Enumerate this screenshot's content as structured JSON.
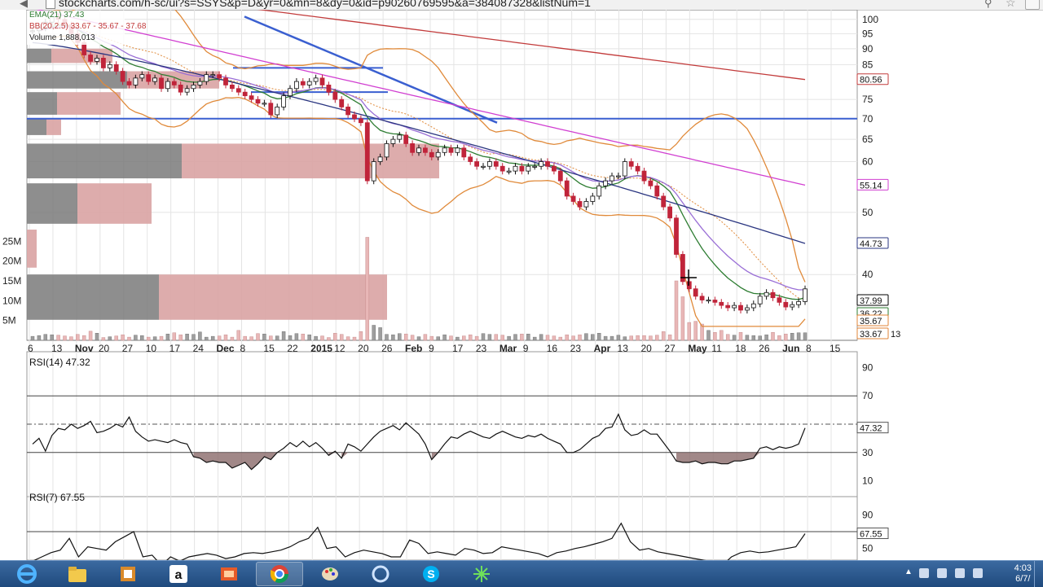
{
  "browser": {
    "url": "stockcharts.com/h-sc/ui?s=SSYS&p=D&yr=0&mn=8&dy=0&id=p90260769595&a=384087328&listNum=1"
  },
  "chart_data": {
    "type": "candlestick",
    "legend": {
      "ema": "EMA(21) 37.43",
      "bb": "BB(20,2.5) 33.67 - 35.67 - 37.68",
      "volume": "Volume 1,888,013"
    },
    "price_axis": {
      "scale": "log",
      "ticks": [
        100,
        95,
        90,
        85,
        75,
        70,
        65,
        60,
        50,
        40
      ],
      "ylim": [
        33,
        102
      ]
    },
    "volume_axis": {
      "ticks": [
        "25M",
        "20M",
        "15M",
        "10M",
        "5M"
      ],
      "tick_values": [
        25,
        20,
        15,
        10,
        5
      ],
      "ylim": [
        0,
        30
      ]
    },
    "x_ticks": [
      "6",
      "13",
      "Nov",
      "20",
      "27",
      "10",
      "17",
      "24",
      "Dec",
      "8",
      "15",
      "22",
      "2015",
      "12",
      "20",
      "26",
      "Feb",
      "9",
      "17",
      "23",
      "Mar",
      "9",
      "16",
      "23",
      "Apr",
      "13",
      "20",
      "27",
      "May",
      "11",
      "18",
      "26",
      "Jun",
      "8",
      "15"
    ],
    "bold_x_ticks": [
      "Nov",
      "Dec",
      "2015",
      "Feb",
      "Mar",
      "Apr",
      "May",
      "Jun"
    ],
    "price_labels": [
      {
        "text": "80.56",
        "value": 80.56,
        "color": "#c23b3b"
      },
      {
        "text": "55.14",
        "value": 55.14,
        "color": "#d13fd1"
      },
      {
        "text": "44.73",
        "value": 44.73,
        "color": "#2a3580"
      },
      {
        "text": "37.99",
        "value": 37.99,
        "color": "#000000"
      },
      {
        "text": "36.22",
        "value": 36.22,
        "color": "#2e7d32"
      },
      {
        "text": "35.67",
        "value": 35.67,
        "color": "#e0853a"
      },
      {
        "text": "33.67",
        "value": 33.67,
        "color": "#e0853a"
      }
    ],
    "price_label_partial": "13",
    "horizontal_line": 70,
    "closes": [
      96,
      97,
      99,
      101,
      100,
      98,
      95,
      92,
      88,
      86,
      87,
      84,
      85,
      83,
      80,
      79,
      81,
      82,
      80,
      81,
      78,
      80,
      79,
      77,
      78,
      79,
      80,
      82,
      82,
      81,
      79,
      78,
      77,
      76,
      75,
      74,
      74,
      71,
      73,
      76,
      78,
      80,
      79,
      80,
      81,
      79,
      77,
      75,
      73,
      71,
      70,
      69,
      56,
      60,
      61,
      64,
      65,
      66,
      64,
      62,
      63,
      62,
      61,
      62,
      63,
      62,
      63,
      61,
      60,
      59,
      59,
      60,
      59,
      58,
      58,
      59,
      58,
      59,
      59,
      60,
      59,
      58,
      56,
      53,
      52,
      51,
      52,
      53,
      55,
      56,
      57,
      57,
      60,
      59,
      58,
      56,
      55,
      53,
      51,
      49,
      43,
      39,
      38,
      37,
      36.5,
      36.5,
      36.2,
      35.8,
      35.5,
      35.8,
      35.2,
      35.5,
      36,
      37,
      37.5,
      36.8,
      36.2,
      35.6,
      35.9,
      36.3,
      37.99
    ],
    "volume_values": [
      1.0,
      1.2,
      1.5,
      1.4,
      1.3,
      1.1,
      0.9,
      1.5,
      1.2,
      2.3,
      1.8,
      0.7,
      0.9,
      1.1,
      1.4,
      0.8,
      1.3,
      1.2,
      0.8,
      0.9,
      1.0,
      1.6,
      1.9,
      1.4,
      1.6,
      1.5,
      2.1,
      0.8,
      1.0,
      1.1,
      1.4,
      0.8,
      2.5,
      1.0,
      0.9,
      1.7,
      1.6,
      1.1,
      1.1,
      2.2,
      1.2,
      1.7,
      1.6,
      1.4,
      1.0,
      1.1,
      0.7,
      1.8,
      1.5,
      0.9,
      0.8,
      2.2,
      26,
      3.8,
      3.2,
      1.5,
      1.4,
      1.7,
      1.6,
      1.3,
      0.9,
      1.5,
      1.0,
      0.9,
      1.4,
      1.1,
      0.8,
      1.1,
      1.4,
      1.0,
      1.7,
      1.5,
      1.5,
      1.3,
      1.0,
      1.5,
      1.6,
      1.6,
      0.8,
      1.5,
      1.3,
      1.1,
      0.8,
      1.4,
      1.1,
      1.4,
      1.7,
      1.5,
      1.8,
      1.0,
      1.0,
      1.3,
      0.9,
      1.1,
      1.2,
      1.2,
      1.1,
      1.3,
      2.2,
      1.4,
      15,
      11,
      4.5,
      4.8,
      4.1,
      2.5,
      2.0,
      2.5,
      1.5,
      1.3,
      2.0,
      1.3,
      1.2,
      1.1,
      1.4,
      2.0,
      1.2,
      1.6,
      1.8,
      1.9,
      1.9
    ],
    "volume_by_price": [
      {
        "price_top": 90,
        "price_bottom": 85.5,
        "down": 30,
        "up": 75
      },
      {
        "price_top": 83,
        "price_bottom": 78,
        "down": 123,
        "up": 113
      },
      {
        "price_top": 77,
        "price_bottom": 71,
        "down": 37,
        "up": 78
      },
      {
        "price_top": 70,
        "price_bottom": 66,
        "down": 24,
        "up": 18
      },
      {
        "price_top": 64,
        "price_bottom": 56.5,
        "down": 190,
        "up": 316
      },
      {
        "price_top": 55.5,
        "price_bottom": 48,
        "down": 62,
        "up": 91
      },
      {
        "price_top": 47,
        "price_bottom": 41,
        "down": 0,
        "up": 12
      },
      {
        "price_top": 40,
        "price_bottom": 34,
        "down": 162,
        "up": 280
      }
    ],
    "rsi14": {
      "label": "RSI(14) 47.32",
      "ticks": [
        90,
        70,
        30,
        10
      ],
      "ylim": [
        0,
        100
      ],
      "current_label": "47.32",
      "values": [
        36,
        40,
        31,
        42,
        47,
        46,
        50,
        47,
        49,
        52,
        44,
        45,
        47,
        50,
        48,
        55,
        45,
        41,
        38,
        39,
        38,
        37,
        39,
        37,
        36,
        27,
        26,
        23,
        24,
        23,
        23,
        19,
        21,
        23,
        18,
        22,
        27,
        25,
        30,
        33,
        37,
        34,
        38,
        34,
        37,
        33,
        28,
        31,
        26,
        36,
        34,
        31,
        36,
        41,
        45,
        47,
        49,
        46,
        51,
        47,
        43,
        36,
        25,
        30,
        36,
        41,
        40,
        43,
        45,
        43,
        41,
        40,
        43,
        45,
        43,
        41,
        40,
        42,
        41,
        43,
        40,
        38,
        36,
        30,
        30,
        32,
        36,
        40,
        42,
        47,
        48,
        57,
        46,
        42,
        43,
        46,
        43,
        43,
        37,
        31,
        24,
        23,
        23,
        24,
        22,
        23,
        23,
        22,
        22,
        24,
        24,
        25,
        26,
        33,
        34,
        32,
        34,
        33,
        34,
        36,
        47.32
      ]
    },
    "rsi7": {
      "label": "RSI(7) 67.55",
      "ticks": [
        90,
        70,
        50
      ],
      "ylim": [
        40,
        100
      ],
      "current_label": "67.55",
      "visible_values": [
        35,
        40,
        45,
        48,
        62,
        40,
        52,
        50,
        48,
        58,
        64,
        70,
        40,
        42,
        30,
        40,
        35,
        40,
        42,
        44,
        42,
        38,
        40,
        44,
        45,
        44,
        46,
        48,
        52,
        58,
        62,
        75,
        50,
        52,
        40,
        45,
        48,
        46,
        44,
        40,
        40,
        60,
        56,
        44,
        46,
        44,
        42,
        50,
        48,
        44,
        45,
        52,
        50,
        48,
        46,
        44,
        40,
        45,
        47,
        50,
        52,
        55,
        58,
        62,
        80,
        58,
        48,
        50,
        46,
        44,
        42,
        40,
        38,
        36,
        34,
        30,
        40,
        45,
        47,
        45,
        46,
        48,
        50,
        52,
        67.55
      ]
    }
  },
  "taskbar": {
    "clock_time": "4:03",
    "clock_date": "6/7/"
  }
}
